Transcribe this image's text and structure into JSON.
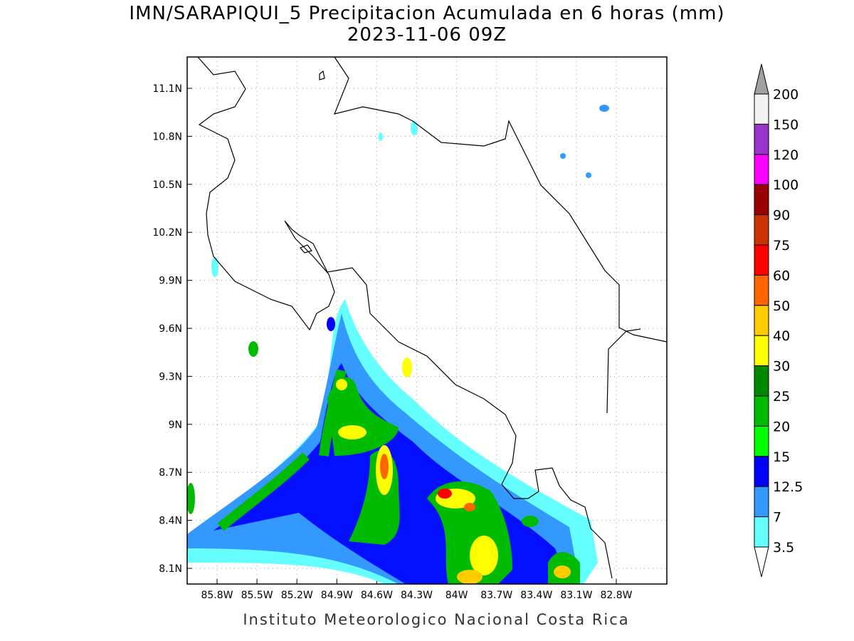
{
  "title": "IMN/SARAPIQUI_5 Precipitacion Acumulada en 6 horas (mm)",
  "subtitle": "2023-11-06 09Z",
  "map": {
    "lat_ticks": [
      "11.1N",
      "10.8N",
      "10.5N",
      "10.2N",
      "9.9N",
      "9.6N",
      "9.3N",
      "9N",
      "8.7N",
      "8.4N",
      "8.1N"
    ],
    "lon_ticks": [
      "85.8W",
      "85.5W",
      "85.2W",
      "84.9W",
      "84.6W",
      "84.3W",
      "84W",
      "83.7W",
      "83.4W",
      "83.1W",
      "82.8W"
    ]
  },
  "colorbar": {
    "labels": [
      200,
      150,
      120,
      100,
      90,
      75,
      60,
      50,
      40,
      30,
      25,
      20,
      15,
      12.5,
      7,
      3.5
    ],
    "colors": [
      "#f2f2f2",
      "#9933cc",
      "#ff00ff",
      "#990000",
      "#cc3300",
      "#ff0000",
      "#ff6600",
      "#ffcc00",
      "#ffff00",
      "#008800",
      "#00bb00",
      "#00ff00",
      "#0000ff",
      "#3399ff",
      "#66ffff"
    ],
    "over_color": "#a0a0a0",
    "under_color": "#ffffff"
  },
  "credit": "Instituto Meteorologico Nacional Costa Rica"
}
